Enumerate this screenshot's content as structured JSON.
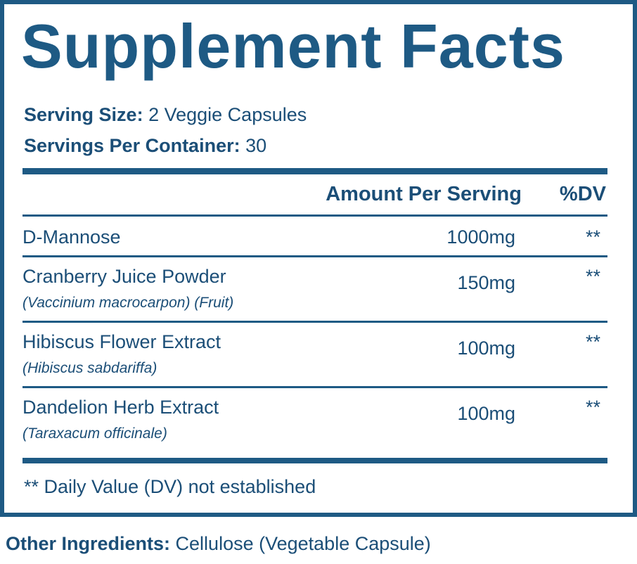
{
  "title": "Supplement Facts",
  "serving_size": {
    "label": "Serving Size:",
    "value": "2 Veggie Capsules"
  },
  "servings_per_container": {
    "label": "Servings Per Container:",
    "value": "30"
  },
  "table": {
    "header": [
      "Amount Per Serving",
      "%DV"
    ],
    "rows": [
      {
        "name": "D-Mannose",
        "amount": "1000mg",
        "dv": "**"
      },
      {
        "name": "Cranberry Juice Powder",
        "latin": "(Vaccinium macrocarpon) (Fruit)",
        "amount": "150mg",
        "dv": "**"
      },
      {
        "name": "Hibiscus Flower Extract",
        "latin": "(Hibiscus sabdariffa)",
        "amount": "100mg",
        "dv": "**"
      },
      {
        "name": "Dandelion Herb Extract",
        "latin": "(Taraxacum officinale)",
        "amount": "100mg",
        "dv": "**"
      }
    ]
  },
  "footnote": "** Daily Value (DV) not established",
  "other_ingredients": {
    "label": "Other Ingredients:",
    "value": "Cellulose (Vegetable Capsule)"
  }
}
